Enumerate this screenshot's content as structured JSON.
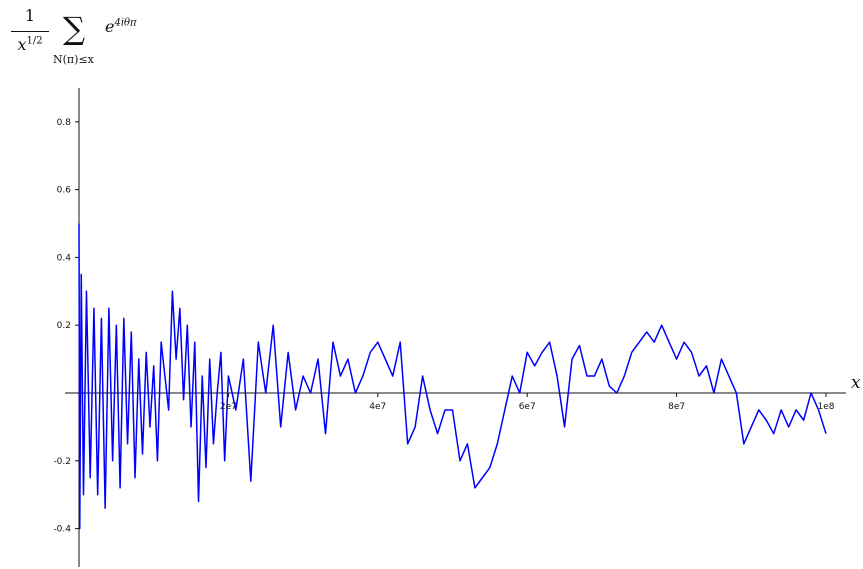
{
  "formula": {
    "numerator": "1",
    "denominator_base": "x",
    "denominator_exp": "1/2",
    "sum_symbol": "∑",
    "sum_subscript": "N(π)≤x",
    "term_base": "e",
    "term_exp": "4iθπ"
  },
  "chart_data": {
    "type": "line",
    "xlabel": "x",
    "ylabel": "",
    "xlim": [
      0,
      100000000
    ],
    "ylim": [
      -0.52,
      0.92
    ],
    "grid": false,
    "legend": "none",
    "x_ticks": [
      {
        "value": 20000000,
        "label": "2e7"
      },
      {
        "value": 40000000,
        "label": "4e7"
      },
      {
        "value": 60000000,
        "label": "6e7"
      },
      {
        "value": 80000000,
        "label": "8e7"
      },
      {
        "value": 100000000,
        "label": "1e8"
      }
    ],
    "y_ticks": [
      {
        "value": 0.8,
        "label": "0.8"
      },
      {
        "value": 0.6,
        "label": "0.6"
      },
      {
        "value": 0.4,
        "label": "0.4"
      },
      {
        "value": 0.2,
        "label": "0.2"
      },
      {
        "value": -0.2,
        "label": "-0.2"
      },
      {
        "value": -0.4,
        "label": "-0.4"
      }
    ],
    "series": [
      {
        "color": "#0000ff",
        "x": [
          0,
          100000,
          300000,
          600000,
          1000000,
          1500000,
          2000000,
          2500000,
          3000000,
          3500000,
          4000000,
          4500000,
          5000000,
          5500000,
          6000000,
          6500000,
          7000000,
          7500000,
          8000000,
          8500000,
          9000000,
          9500000,
          10000000,
          10500000,
          11000000,
          11500000,
          12000000,
          12500000,
          13000000,
          13500000,
          14000000,
          14500000,
          15000000,
          15500000,
          16000000,
          16500000,
          17000000,
          17500000,
          18000000,
          18500000,
          19000000,
          19500000,
          20000000,
          21000000,
          22000000,
          23000000,
          24000000,
          25000000,
          26000000,
          27000000,
          28000000,
          29000000,
          30000000,
          31000000,
          32000000,
          33000000,
          34000000,
          35000000,
          36000000,
          37000000,
          38000000,
          39000000,
          40000000,
          41000000,
          42000000,
          43000000,
          44000000,
          45000000,
          46000000,
          47000000,
          48000000,
          49000000,
          50000000,
          51000000,
          52000000,
          53000000,
          54000000,
          55000000,
          56000000,
          57000000,
          58000000,
          59000000,
          60000000,
          61000000,
          62000000,
          63000000,
          64000000,
          65000000,
          66000000,
          67000000,
          68000000,
          69000000,
          70000000,
          71000000,
          72000000,
          73000000,
          74000000,
          75000000,
          76000000,
          77000000,
          78000000,
          79000000,
          80000000,
          81000000,
          82000000,
          83000000,
          84000000,
          85000000,
          86000000,
          87000000,
          88000000,
          89000000,
          90000000,
          91000000,
          92000000,
          93000000,
          94000000,
          95000000,
          96000000,
          97000000,
          98000000,
          99000000,
          100000000
        ],
        "y": [
          0.5,
          -0.4,
          0.35,
          -0.3,
          0.3,
          -0.25,
          0.25,
          -0.3,
          0.22,
          -0.34,
          0.25,
          -0.2,
          0.2,
          -0.28,
          0.22,
          -0.15,
          0.18,
          -0.25,
          0.1,
          -0.18,
          0.12,
          -0.1,
          0.08,
          -0.2,
          0.15,
          0.05,
          -0.05,
          0.3,
          0.1,
          0.25,
          -0.02,
          0.2,
          -0.1,
          0.15,
          -0.32,
          0.05,
          -0.22,
          0.1,
          -0.15,
          0.0,
          0.12,
          -0.2,
          0.05,
          -0.05,
          0.1,
          -0.26,
          0.15,
          0.0,
          0.2,
          -0.1,
          0.12,
          -0.05,
          0.05,
          0.0,
          0.1,
          -0.12,
          0.15,
          0.05,
          0.1,
          0.0,
          0.05,
          0.12,
          0.15,
          0.1,
          0.05,
          0.15,
          -0.15,
          -0.1,
          0.05,
          -0.05,
          -0.12,
          -0.05,
          -0.05,
          -0.2,
          -0.15,
          -0.28,
          -0.25,
          -0.22,
          -0.15,
          -0.05,
          0.05,
          0.0,
          0.12,
          0.08,
          0.12,
          0.15,
          0.05,
          -0.1,
          0.1,
          0.14,
          0.05,
          0.05,
          0.1,
          0.02,
          0.0,
          0.05,
          0.12,
          0.15,
          0.18,
          0.15,
          0.2,
          0.15,
          0.1,
          0.15,
          0.12,
          0.05,
          0.08,
          0.0,
          0.1,
          0.05,
          0.0,
          -0.15,
          -0.1,
          -0.05,
          -0.08,
          -0.12,
          -0.05,
          -0.1,
          -0.05,
          -0.08,
          0.0,
          -0.05,
          -0.12
        ]
      }
    ]
  }
}
